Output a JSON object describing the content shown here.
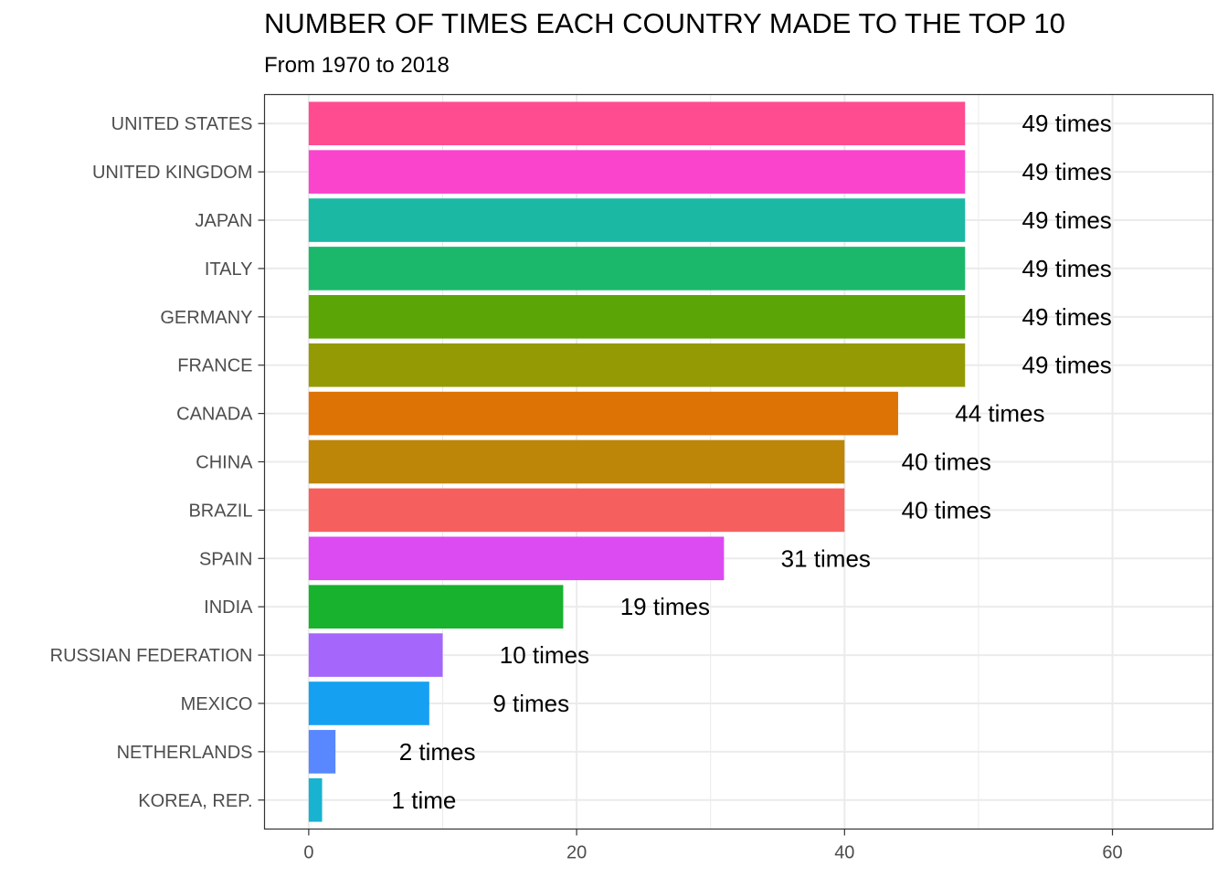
{
  "chart_data": {
    "type": "bar",
    "orientation": "horizontal",
    "title": "NUMBER OF TIMES EACH COUNTRY MADE TO THE TOP 10",
    "subtitle": "From 1970 to 2018",
    "xlabel": "",
    "ylabel": "",
    "xlim": [
      -3.3,
      67.5
    ],
    "xticks": [
      0,
      20,
      40,
      60
    ],
    "grid": true,
    "legend": "none",
    "bars": [
      {
        "category": "UNITED STATES",
        "value": 49,
        "label": "49 times",
        "color": "#FF4B8F"
      },
      {
        "category": "UNITED KINGDOM",
        "value": 49,
        "label": "49 times",
        "color": "#FA44CC"
      },
      {
        "category": "JAPAN",
        "value": 49,
        "label": "49 times",
        "color": "#1BB8A4"
      },
      {
        "category": "ITALY",
        "value": 49,
        "label": "49 times",
        "color": "#1BB86C"
      },
      {
        "category": "GERMANY",
        "value": 49,
        "label": "49 times",
        "color": "#5BA506"
      },
      {
        "category": "FRANCE",
        "value": 49,
        "label": "49 times",
        "color": "#949A04"
      },
      {
        "category": "CANADA",
        "value": 44,
        "label": "44 times",
        "color": "#DD7305"
      },
      {
        "category": "CHINA",
        "value": 40,
        "label": "40 times",
        "color": "#BD8608"
      },
      {
        "category": "BRAZIL",
        "value": 40,
        "label": "40 times",
        "color": "#F5605F"
      },
      {
        "category": "SPAIN",
        "value": 31,
        "label": "31 times",
        "color": "#DC4AF2"
      },
      {
        "category": "INDIA",
        "value": 19,
        "label": "19 times",
        "color": "#18B22F"
      },
      {
        "category": "RUSSIAN FEDERATION",
        "value": 10,
        "label": "10 times",
        "color": "#A566FC"
      },
      {
        "category": "MEXICO",
        "value": 9,
        "label": "9 times",
        "color": "#16A0F2"
      },
      {
        "category": "NETHERLANDS",
        "value": 2,
        "label": "2 times",
        "color": "#5887FE"
      },
      {
        "category": "KOREA, REP.",
        "value": 1,
        "label": "1 time",
        "color": "#18B3D0"
      }
    ]
  }
}
